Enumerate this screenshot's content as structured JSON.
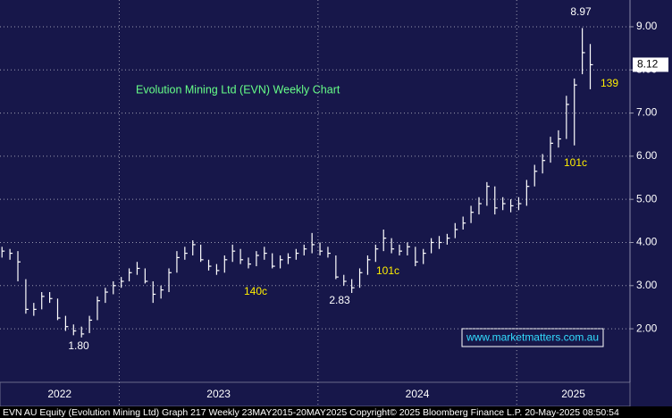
{
  "chart_data": {
    "type": "ohlc",
    "title": "Evolution Mining Ltd (EVN) Weekly Chart",
    "footer": "EVN AU Equity (Evolution Mining Ltd) Graph 217  Weekly 23MAY2015-20MAY2025 Copyright© 2025 Bloomberg Finance L.P.  20-May-2025 08:50:54",
    "watermark": "www.marketmatters.com.au",
    "color": "#ffffff",
    "xlim": [
      2022.4,
      2025.57
    ],
    "ylim": [
      0.76,
      9.62
    ],
    "yticks": [
      {
        "value": 2,
        "label": "2.00"
      },
      {
        "value": 3,
        "label": "3.00"
      },
      {
        "value": 4,
        "label": "4.00"
      },
      {
        "value": 5,
        "label": "5.00"
      },
      {
        "value": 6,
        "label": "6.00"
      },
      {
        "value": 7,
        "label": "7.00"
      },
      {
        "value": 8,
        "label": "8.00"
      },
      {
        "value": 9,
        "label": "9.00"
      }
    ],
    "x_gridlines": [
      2023,
      2024,
      2025
    ],
    "x_labels": [
      "2022",
      "2023",
      "2024",
      "2025"
    ],
    "grid": true,
    "last_price": 8.12,
    "annotations": [
      "8.97",
      "1.80",
      "2.83",
      "140c",
      "101c",
      "101c",
      "139"
    ],
    "x": [
      2022.41,
      2022.45,
      2022.49,
      2022.53,
      2022.57,
      2022.61,
      2022.65,
      2022.69,
      2022.73,
      2022.77,
      2022.81,
      2022.85,
      2022.89,
      2022.93,
      2022.97,
      2023.01,
      2023.05,
      2023.09,
      2023.13,
      2023.17,
      2023.21,
      2023.25,
      2023.29,
      2023.33,
      2023.37,
      2023.41,
      2023.45,
      2023.49,
      2023.53,
      2023.57,
      2023.61,
      2023.65,
      2023.69,
      2023.73,
      2023.77,
      2023.81,
      2023.85,
      2023.89,
      2023.93,
      2023.97,
      2024.01,
      2024.05,
      2024.09,
      2024.13,
      2024.17,
      2024.21,
      2024.25,
      2024.29,
      2024.33,
      2024.37,
      2024.41,
      2024.45,
      2024.49,
      2024.53,
      2024.57,
      2024.61,
      2024.65,
      2024.69,
      2024.73,
      2024.77,
      2024.81,
      2024.85,
      2024.89,
      2024.93,
      2024.97,
      2025.01,
      2025.05,
      2025.09,
      2025.13,
      2025.17,
      2025.21,
      2025.25,
      2025.29,
      2025.33,
      2025.37
    ],
    "close": [
      3.8,
      3.75,
      3.55,
      2.45,
      2.45,
      2.75,
      2.7,
      2.25,
      2.05,
      1.95,
      1.88,
      2.2,
      2.65,
      2.85,
      3.0,
      3.1,
      3.3,
      3.4,
      3.1,
      2.8,
      2.9,
      3.3,
      3.65,
      3.75,
      3.95,
      3.6,
      3.45,
      3.35,
      3.6,
      3.8,
      3.6,
      3.5,
      3.7,
      3.75,
      3.45,
      3.6,
      3.65,
      3.75,
      3.85,
      3.95,
      3.8,
      3.75,
      3.2,
      3.1,
      2.95,
      3.3,
      3.6,
      3.85,
      4.1,
      3.85,
      3.8,
      3.9,
      3.55,
      3.75,
      4.0,
      4.0,
      4.1,
      4.3,
      4.45,
      4.7,
      4.9,
      5.3,
      4.8,
      4.9,
      4.85,
      4.9,
      5.3,
      5.65,
      5.9,
      6.3,
      6.4,
      7.2,
      7.65,
      8.4,
      8.12
    ],
    "high": [
      3.9,
      3.85,
      3.8,
      3.15,
      2.6,
      2.85,
      2.85,
      2.7,
      2.3,
      2.1,
      2.05,
      2.3,
      2.75,
      2.95,
      3.1,
      3.2,
      3.4,
      3.55,
      3.4,
      3.1,
      3.0,
      3.4,
      3.8,
      3.9,
      4.05,
      3.95,
      3.6,
      3.5,
      3.7,
      3.95,
      3.85,
      3.65,
      3.8,
      3.9,
      3.75,
      3.7,
      3.75,
      3.85,
      3.95,
      4.22,
      4.0,
      3.9,
      3.7,
      3.25,
      3.15,
      3.4,
      3.7,
      3.95,
      4.3,
      4.1,
      3.95,
      4.0,
      3.9,
      3.85,
      4.1,
      4.15,
      4.2,
      4.45,
      4.6,
      4.85,
      5.05,
      5.4,
      5.3,
      5.05,
      5.0,
      5.05,
      5.45,
      5.8,
      6.05,
      6.45,
      6.6,
      7.4,
      7.8,
      8.97,
      8.6
    ],
    "low": [
      3.65,
      3.6,
      3.1,
      2.35,
      2.3,
      2.45,
      2.6,
      2.2,
      1.95,
      1.85,
      1.8,
      1.9,
      2.2,
      2.6,
      2.8,
      2.95,
      3.1,
      3.25,
      3.05,
      2.6,
      2.7,
      2.85,
      3.3,
      3.6,
      3.7,
      3.55,
      3.35,
      3.25,
      3.3,
      3.55,
      3.5,
      3.4,
      3.45,
      3.6,
      3.4,
      3.4,
      3.5,
      3.6,
      3.7,
      3.75,
      3.7,
      3.65,
      3.15,
      3.0,
      2.83,
      2.95,
      3.25,
      3.55,
      3.8,
      3.75,
      3.7,
      3.7,
      3.45,
      3.5,
      3.75,
      3.85,
      3.95,
      4.1,
      4.3,
      4.45,
      4.65,
      4.85,
      4.65,
      4.75,
      4.7,
      4.75,
      4.85,
      5.3,
      5.6,
      5.85,
      6.2,
      6.4,
      6.25,
      7.9,
      7.55
    ]
  }
}
